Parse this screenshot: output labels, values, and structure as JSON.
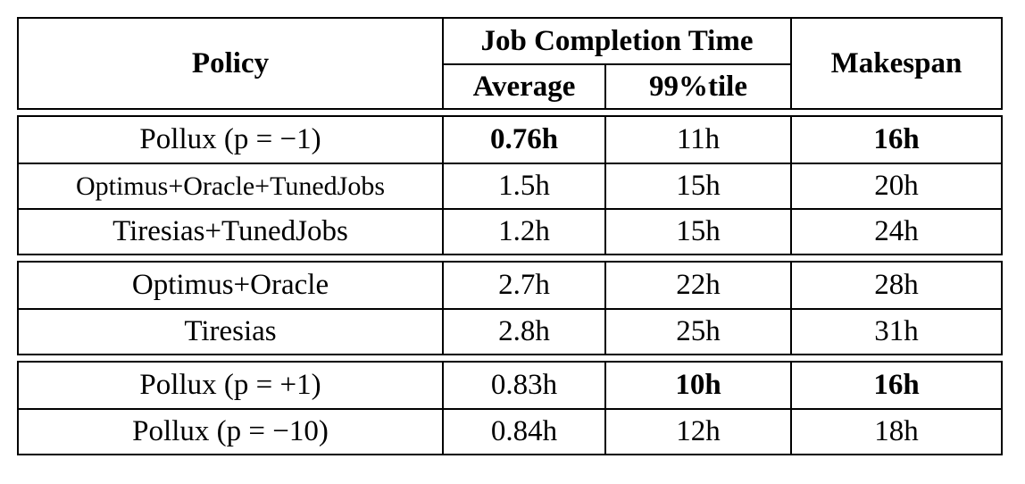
{
  "header": {
    "policy": "Policy",
    "jct": "Job Completion Time",
    "average": "Average",
    "percentile": "99%tile",
    "makespan": "Makespan"
  },
  "groups": [
    [
      {
        "policy": "Pollux (p = −1)",
        "average": "0.76h",
        "percentile": "11h",
        "makespan": "16h",
        "bold": [
          "average",
          "makespan"
        ]
      },
      {
        "policy": "Optimus+Oracle+TunedJobs",
        "average": "1.5h",
        "percentile": "15h",
        "makespan": "20h",
        "bold": []
      },
      {
        "policy": "Tiresias+TunedJobs",
        "average": "1.2h",
        "percentile": "15h",
        "makespan": "24h",
        "bold": []
      }
    ],
    [
      {
        "policy": "Optimus+Oracle",
        "average": "2.7h",
        "percentile": "22h",
        "makespan": "28h",
        "bold": []
      },
      {
        "policy": "Tiresias",
        "average": "2.8h",
        "percentile": "25h",
        "makespan": "31h",
        "bold": []
      }
    ],
    [
      {
        "policy": "Pollux (p = +1)",
        "average": "0.83h",
        "percentile": "10h",
        "makespan": "16h",
        "bold": [
          "percentile",
          "makespan"
        ]
      },
      {
        "policy": "Pollux (p = −10)",
        "average": "0.84h",
        "percentile": "12h",
        "makespan": "18h",
        "bold": []
      }
    ]
  ]
}
